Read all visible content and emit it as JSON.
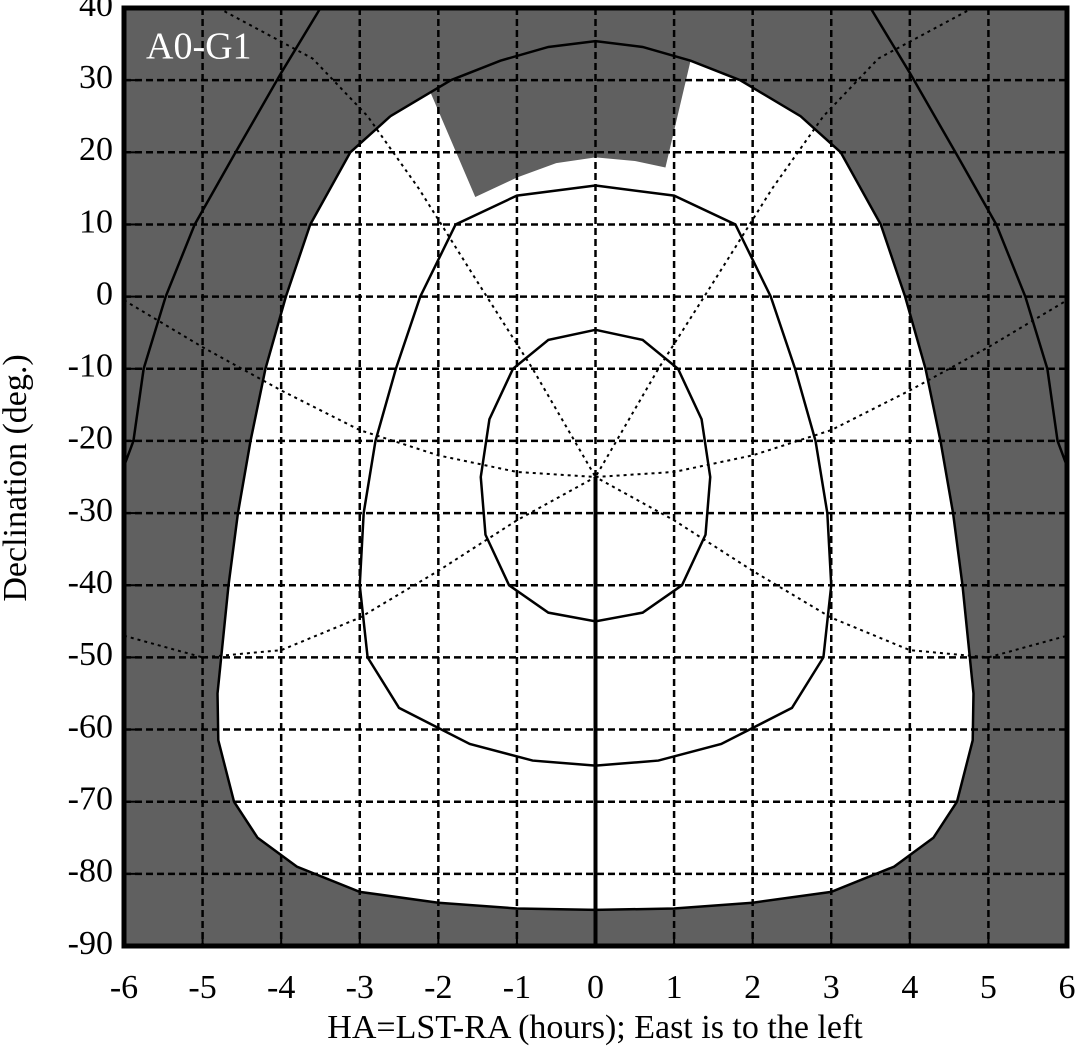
{
  "chart_data": {
    "type": "line",
    "annotation": "A0-G1",
    "xlabel": "HA=LST-RA (hours); East is to the left",
    "ylabel": "Declination (deg.)",
    "xlim": [
      -6,
      6
    ],
    "ylim": [
      -90,
      40
    ],
    "xticks": [
      -6,
      -5,
      -4,
      -3,
      -2,
      -1,
      0,
      1,
      2,
      3,
      4,
      5,
      6
    ],
    "yticks": [
      40,
      30,
      20,
      10,
      0,
      -10,
      -20,
      -30,
      -40,
      -50,
      -60,
      -70,
      -80,
      -90
    ],
    "grid": true,
    "background": "#606060",
    "series": [
      {
        "style": "fill",
        "color": "#ffffff",
        "x": [
          1.21,
          1.84,
          2.61,
          3.12,
          3.63,
          3.94,
          4.2,
          4.39,
          4.55,
          4.67,
          4.81,
          4.8,
          4.6,
          4.3,
          3.8,
          3,
          2,
          1,
          0,
          -1,
          -2,
          -3,
          -3.8,
          -4.3,
          -4.6,
          -4.8,
          -4.81,
          -4.67,
          -4.55,
          -4.39,
          -4.2,
          -3.94,
          -3.63,
          -3.12,
          -2.61,
          -2.1,
          -1.53,
          -1,
          -0.5,
          0,
          0.5,
          0.89
        ],
        "values": [
          32.7,
          30,
          25,
          20,
          10,
          0,
          -10,
          -20,
          -30,
          -40,
          -55,
          -61.5,
          -70,
          -75,
          -79,
          -82.5,
          -84,
          -84.8,
          -85,
          -84.8,
          -84,
          -82.5,
          -79,
          -75,
          -70,
          -61.5,
          -55,
          -40,
          -30,
          -20,
          -10,
          0,
          10,
          20,
          25,
          28.3,
          13.8,
          16.5,
          18.5,
          19.3,
          18.8,
          17.9
        ]
      },
      {
        "style": "solid",
        "color": "#000000",
        "x": [
          -2.61,
          -1.84,
          -1.21,
          -0.6,
          0,
          0.6,
          1.21,
          1.84,
          2.61,
          3.12,
          3.63,
          3.94,
          4.2,
          4.39,
          4.55,
          4.67,
          4.81,
          4.8,
          4.6,
          4.3,
          3.8,
          3,
          2,
          1,
          0,
          -1,
          -2,
          -3,
          -3.8,
          -4.3,
          -4.6,
          -4.8,
          -4.81,
          -4.67,
          -4.55,
          -4.39,
          -4.2,
          -3.94,
          -3.63,
          -3.12,
          -2.61
        ],
        "values": [
          25,
          30,
          32.7,
          34.6,
          35.4,
          34.6,
          32.7,
          30,
          25,
          20,
          10,
          0,
          -10,
          -20,
          -30,
          -40,
          -55,
          -61.5,
          -70,
          -75,
          -79,
          -82.5,
          -84,
          -84.8,
          -85,
          -84.8,
          -84,
          -82.5,
          -79,
          -75,
          -70,
          -61.5,
          -55,
          -40,
          -30,
          -20,
          -10,
          0,
          10,
          20,
          25
        ]
      },
      {
        "style": "solid",
        "color": "#000000",
        "x": [
          -3.5,
          -4,
          -4.58,
          -5.1,
          -5.47,
          -5.75,
          -5.88,
          -6,
          null,
          3.5,
          4,
          4.58,
          5.1,
          5.47,
          5.75,
          5.88,
          6
        ],
        "values": [
          40,
          31,
          20,
          10,
          0,
          -10,
          -20,
          -23.5,
          null,
          40,
          31,
          20,
          10,
          0,
          -10,
          -20,
          -23.5
        ]
      },
      {
        "style": "solid",
        "color": "#000000",
        "x": [
          0,
          1,
          1.78,
          2.23,
          2.54,
          2.8,
          2.95,
          3,
          2.9,
          2.5,
          1.6,
          0.8,
          0,
          -0.8,
          -1.6,
          -2.5,
          -2.9,
          -3,
          -2.95,
          -2.8,
          -2.54,
          -2.23,
          -1.78,
          -1,
          0
        ],
        "values": [
          15.4,
          14,
          10,
          0,
          -10,
          -20,
          -30,
          -40,
          -50,
          -57,
          -62,
          -64.3,
          -65,
          -64.3,
          -62,
          -57,
          -50,
          -40,
          -30,
          -20,
          -10,
          0,
          10,
          14,
          15.4
        ]
      },
      {
        "style": "solid",
        "color": "#000000",
        "x": [
          0,
          0.6,
          1.05,
          1.35,
          1.46,
          1.4,
          1.1,
          0.6,
          0,
          -0.6,
          -1.1,
          -1.4,
          -1.46,
          -1.35,
          -1.05,
          -0.6,
          0
        ],
        "values": [
          -4.6,
          -6,
          -10,
          -17,
          -25,
          -33,
          -40,
          -43.8,
          -45,
          -43.8,
          -40,
          -33,
          -25,
          -17,
          -10,
          -6,
          -4.6
        ]
      },
      {
        "style": "thick",
        "color": "#000000",
        "x": [
          0,
          0
        ],
        "values": [
          -25,
          -90
        ]
      },
      {
        "style": "dotted",
        "color": "#000000",
        "x": [
          -6,
          -5,
          -4,
          -3,
          -2,
          -1,
          0,
          1,
          2,
          3,
          4,
          5,
          6
        ],
        "values": [
          -0.5,
          -7,
          -13,
          -18.5,
          -22,
          -24.3,
          -25,
          -24.3,
          -22,
          -18.5,
          -13,
          -7,
          -0.5
        ]
      },
      {
        "style": "dotted",
        "color": "#000000",
        "x": [
          -6,
          -5,
          -4,
          -3,
          -2,
          -1,
          0,
          1,
          2,
          3,
          4,
          5,
          6
        ],
        "values": [
          -47,
          -50,
          -49,
          -44.5,
          -38,
          -31,
          -25,
          -31,
          -38,
          -44.5,
          -49,
          -50,
          -47
        ]
      },
      {
        "style": "dotted",
        "color": "#000000",
        "x": [
          -4.8,
          -3.6,
          -2.9,
          -2.25,
          -1.5,
          -0.8,
          0,
          0.8,
          1.5,
          2.25,
          2.9,
          3.6,
          4.8
        ],
        "values": [
          40,
          33,
          25,
          15,
          2,
          -10,
          -25,
          -10,
          2,
          15,
          25,
          33,
          40
        ]
      }
    ]
  }
}
